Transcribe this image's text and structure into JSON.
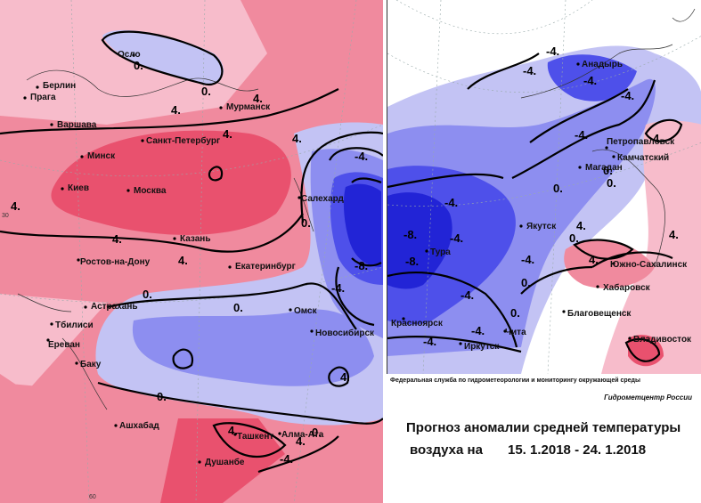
{
  "colors": {
    "warm_strong": "#e9516e",
    "warm_mid": "#f08a9e",
    "warm_light": "#f7bccb",
    "cold_light": "#c3c3f4",
    "cold_mid": "#8d8ef0",
    "cold_strong": "#4e50ea",
    "cold_deep": "#2224d6"
  },
  "left_panel": {
    "cities": [
      "Осло",
      "Берлин",
      "Прага",
      "Мурманск",
      "Варшава",
      "Санкт-Петербург",
      "Минск",
      "Киев",
      "Москва",
      "Салехард",
      "Казань",
      "Ростов-на-Дону",
      "Екатеринбург",
      "Астрахань",
      "Омск",
      "Тбилиси",
      "Ереван",
      "Новосибирск",
      "Баку",
      "Ашхабад",
      "Ташкент",
      "Алма-Ата",
      "Душанбе"
    ],
    "isolines": [
      "0.",
      "0.",
      "4.",
      "4.",
      "4.",
      "4.",
      "4.",
      "4.",
      "4.",
      "-4.",
      "-8.",
      "-4.",
      "0.",
      "0.",
      "0.",
      "0.",
      "4.",
      "4.",
      "-4.",
      "4.",
      "0."
    ],
    "axis_labels": [
      "30",
      "60"
    ]
  },
  "right_panel": {
    "cities": [
      "Анадырь",
      "Петропавловск",
      "Камчатский",
      "Магадан",
      "Якутск",
      "Тура",
      "Южно-Сахалинск",
      "Хабаровск",
      "Благовещенск",
      "Красноярск",
      "Чита",
      "Иркутск",
      "Владивосток"
    ],
    "isolines": [
      "-4.",
      "-4.",
      "-4.",
      "0.",
      "-4.",
      "-4.",
      "0.",
      "0.",
      "-4.",
      "-8.",
      "-8.",
      "-4.",
      "-4.",
      "-4.",
      "-4.",
      "-4.",
      "0.",
      "0.",
      "4.",
      "4.",
      "0.",
      "4.",
      "4."
    ]
  },
  "info": {
    "agency": "Федеральная служба по гидрометеорологии и мониторингу окружающей среды",
    "center": "Гидрометцентр России",
    "title_line1": "Прогноз аномалии средней температуры",
    "title_line2": "воздуха на",
    "dates": "15. 1.2018 - 24. 1.2018"
  }
}
